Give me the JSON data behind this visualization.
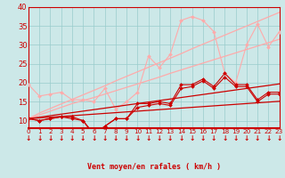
{
  "xlabel": "Vent moyen/en rafales ( km/h )",
  "bg_color": "#cce8e8",
  "grid_color": "#99cccc",
  "x_values": [
    0,
    1,
    2,
    3,
    4,
    5,
    6,
    7,
    8,
    9,
    10,
    11,
    12,
    13,
    14,
    15,
    16,
    17,
    18,
    19,
    20,
    21,
    22,
    23
  ],
  "rafales_light": [
    19.5,
    16.5,
    17.0,
    17.5,
    15.5,
    15.5,
    15.0,
    18.5,
    13.0,
    15.0,
    17.5,
    27.0,
    24.0,
    27.5,
    36.5,
    37.5,
    36.5,
    33.5,
    22.5,
    20.0,
    30.0,
    35.5,
    29.5,
    33.5
  ],
  "trend_hi1": [
    10.5,
    12.0,
    13.2,
    14.4,
    15.6,
    16.8,
    18.0,
    19.2,
    20.5,
    21.7,
    22.9,
    24.1,
    25.3,
    26.5,
    27.7,
    29.0,
    30.2,
    31.4,
    32.6,
    33.8,
    35.0,
    36.2,
    37.4,
    38.6
  ],
  "trend_hi2": [
    10.5,
    11.5,
    12.5,
    13.5,
    14.5,
    15.3,
    16.1,
    17.0,
    17.9,
    18.8,
    19.7,
    20.6,
    21.5,
    22.5,
    23.4,
    24.3,
    25.2,
    26.1,
    27.0,
    27.9,
    28.8,
    29.7,
    30.6,
    31.5
  ],
  "wind_mean1": [
    10.5,
    10.0,
    10.5,
    11.0,
    11.0,
    10.0,
    6.5,
    8.5,
    10.5,
    10.5,
    14.5,
    14.5,
    15.0,
    14.5,
    19.5,
    19.5,
    21.0,
    19.0,
    22.5,
    19.5,
    19.5,
    15.5,
    17.5,
    17.5
  ],
  "wind_mean2": [
    10.5,
    10.0,
    10.5,
    11.0,
    10.5,
    10.0,
    6.0,
    8.5,
    10.5,
    10.5,
    13.5,
    14.0,
    14.5,
    14.0,
    18.5,
    19.0,
    20.5,
    18.5,
    21.5,
    19.0,
    19.0,
    15.0,
    17.0,
    17.0
  ],
  "trend_lo1": [
    10.5,
    10.9,
    11.3,
    11.7,
    12.1,
    12.5,
    12.9,
    13.3,
    13.7,
    14.1,
    14.5,
    14.9,
    15.3,
    15.7,
    16.1,
    16.5,
    16.9,
    17.3,
    17.7,
    18.1,
    18.5,
    18.9,
    19.3,
    19.7
  ],
  "trend_lo2": [
    10.5,
    10.7,
    10.9,
    11.1,
    11.3,
    11.5,
    11.7,
    11.9,
    12.1,
    12.3,
    12.5,
    12.7,
    12.9,
    13.1,
    13.3,
    13.5,
    13.7,
    13.9,
    14.1,
    14.3,
    14.5,
    14.7,
    14.9,
    15.1
  ],
  "color_dark_red": "#cc0000",
  "color_light_pink": "#ffaaaa",
  "ylim_min": 8,
  "ylim_max": 40,
  "xlim_min": 0,
  "xlim_max": 23
}
